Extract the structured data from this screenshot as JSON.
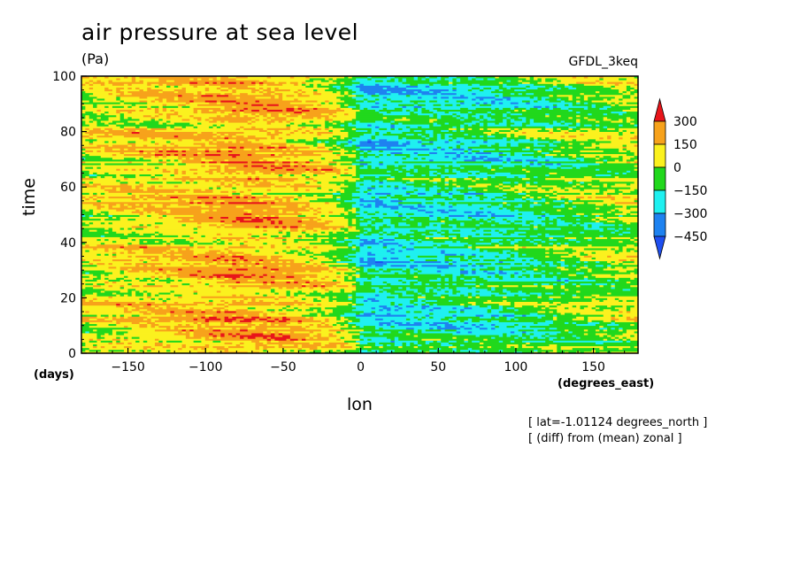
{
  "header": {
    "title": "air pressure at sea level",
    "units": "(Pa)",
    "dataset": "GFDL_3keq"
  },
  "axes": {
    "ylabel": "time",
    "xlabel": "lon",
    "y_units": "(days)",
    "x_units": "(degrees_east)"
  },
  "notes": {
    "line1": "[ lat=-1.01124 degrees_north ]",
    "line2": "[ (diff) from (mean) zonal ]"
  },
  "chart_data": {
    "type": "heatmap",
    "title": "air pressure at sea level",
    "xlabel": "lon",
    "ylabel": "time",
    "xlim": [
      -180,
      178.75
    ],
    "ylim": [
      0,
      100
    ],
    "x_ticks": [
      -150,
      -100,
      -50,
      0,
      50,
      100,
      150
    ],
    "y_ticks": [
      0,
      20,
      40,
      60,
      80,
      100
    ],
    "colorbar": {
      "levels": [
        300,
        150,
        0,
        -150,
        -300,
        -450
      ],
      "colors": [
        "#e8151a",
        "#f7a21b",
        "#fbf11e",
        "#21d81c",
        "#1ff0f0",
        "#1e82f0",
        "#1f4ff0"
      ],
      "extend": "both"
    },
    "profile": {
      "lon": [
        -180,
        -150,
        -120,
        -100,
        -80,
        -60,
        -40,
        -20,
        -5,
        0,
        10,
        30,
        60,
        90,
        120,
        150,
        178.75
      ],
      "value": [
        40,
        90,
        120,
        150,
        190,
        170,
        130,
        60,
        -60,
        -190,
        -220,
        -180,
        -170,
        -150,
        -90,
        -40,
        10
      ]
    }
  }
}
